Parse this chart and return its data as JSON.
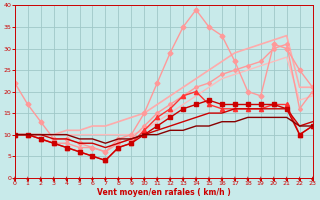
{
  "xlabel": "Vent moyen/en rafales ( km/h )",
  "xlim": [
    0,
    23
  ],
  "ylim": [
    0,
    40
  ],
  "yticks": [
    0,
    5,
    10,
    15,
    20,
    25,
    30,
    35,
    40
  ],
  "xticks": [
    0,
    1,
    2,
    3,
    4,
    5,
    6,
    7,
    8,
    9,
    10,
    11,
    12,
    13,
    14,
    15,
    16,
    17,
    18,
    19,
    20,
    21,
    22,
    23
  ],
  "bg_color": "#c8eaea",
  "grid_color": "#a0c8c8",
  "series": [
    {
      "x": [
        0,
        1,
        2,
        3,
        4,
        5,
        6,
        7,
        8,
        9,
        10,
        11,
        12,
        13,
        14,
        15,
        16,
        17,
        18,
        19,
        20,
        21,
        22,
        23
      ],
      "y": [
        10,
        10,
        10,
        10,
        11,
        11,
        12,
        12,
        13,
        14,
        15,
        17,
        19,
        21,
        23,
        25,
        27,
        29,
        30,
        31,
        32,
        33,
        21,
        21
      ],
      "color": "#ffaaaa",
      "marker": null,
      "lw": 1.2,
      "ms": 0
    },
    {
      "x": [
        0,
        1,
        2,
        3,
        4,
        5,
        6,
        7,
        8,
        9,
        10,
        11,
        12,
        13,
        14,
        15,
        16,
        17,
        18,
        19,
        20,
        21,
        22,
        23
      ],
      "y": [
        10,
        10,
        10,
        10,
        10,
        10,
        10,
        10,
        10,
        10,
        11,
        13,
        15,
        17,
        19,
        21,
        23,
        24,
        25,
        26,
        27,
        28,
        18,
        19
      ],
      "color": "#ffbbbb",
      "marker": null,
      "lw": 1.0,
      "ms": 0
    },
    {
      "x": [
        0,
        1,
        2,
        3,
        4,
        5,
        6,
        7,
        8,
        9,
        10,
        11,
        12,
        13,
        14,
        15,
        16,
        17,
        18,
        19,
        20,
        21,
        22,
        23
      ],
      "y": [
        22,
        17,
        13,
        9,
        9,
        8,
        7,
        6,
        9,
        10,
        15,
        22,
        29,
        35,
        39,
        35,
        33,
        27,
        20,
        19,
        31,
        30,
        25,
        21
      ],
      "color": "#ff9999",
      "marker": "D",
      "lw": 1.0,
      "ms": 2.5
    },
    {
      "x": [
        0,
        1,
        2,
        3,
        4,
        5,
        6,
        7,
        8,
        9,
        10,
        11,
        12,
        13,
        14,
        15,
        16,
        17,
        18,
        19,
        20,
        21,
        22,
        23
      ],
      "y": [
        10,
        10,
        9,
        8,
        8,
        7,
        7,
        6,
        8,
        9,
        12,
        15,
        17,
        19,
        21,
        22,
        24,
        25,
        26,
        27,
        30,
        31,
        16,
        20
      ],
      "color": "#ff9999",
      "marker": "D",
      "lw": 1.0,
      "ms": 2.0
    },
    {
      "x": [
        0,
        1,
        2,
        3,
        4,
        5,
        6,
        7,
        8,
        9,
        10,
        11,
        12,
        13,
        14,
        15,
        16,
        17,
        18,
        19,
        20,
        21,
        22,
        23
      ],
      "y": [
        10,
        10,
        9,
        8,
        7,
        6,
        5,
        4,
        7,
        8,
        11,
        14,
        16,
        19,
        20,
        17,
        16,
        16,
        16,
        16,
        17,
        17,
        10,
        12
      ],
      "color": "#ff3333",
      "marker": "^",
      "lw": 1.0,
      "ms": 3.0
    },
    {
      "x": [
        0,
        1,
        2,
        3,
        4,
        5,
        6,
        7,
        8,
        9,
        10,
        11,
        12,
        13,
        14,
        15,
        16,
        17,
        18,
        19,
        20,
        21,
        22,
        23
      ],
      "y": [
        10,
        10,
        9,
        8,
        7,
        6,
        5,
        4,
        7,
        8,
        10,
        12,
        14,
        16,
        17,
        18,
        17,
        17,
        17,
        17,
        17,
        16,
        10,
        12
      ],
      "color": "#cc0000",
      "marker": "s",
      "lw": 1.0,
      "ms": 2.5
    },
    {
      "x": [
        0,
        1,
        2,
        3,
        4,
        5,
        6,
        7,
        8,
        9,
        10,
        11,
        12,
        13,
        14,
        15,
        16,
        17,
        18,
        19,
        20,
        21,
        22,
        23
      ],
      "y": [
        10,
        10,
        10,
        9,
        9,
        8,
        8,
        7,
        8,
        9,
        10,
        11,
        12,
        13,
        14,
        15,
        15,
        16,
        16,
        16,
        16,
        16,
        12,
        13
      ],
      "color": "#cc0000",
      "marker": null,
      "lw": 1.0,
      "ms": 0
    },
    {
      "x": [
        0,
        1,
        2,
        3,
        4,
        5,
        6,
        7,
        8,
        9,
        10,
        11,
        12,
        13,
        14,
        15,
        16,
        17,
        18,
        19,
        20,
        21,
        22,
        23
      ],
      "y": [
        10,
        10,
        10,
        10,
        10,
        9,
        9,
        8,
        9,
        9,
        10,
        10,
        11,
        11,
        12,
        12,
        13,
        13,
        14,
        14,
        14,
        14,
        12,
        12
      ],
      "color": "#880000",
      "marker": null,
      "lw": 1.0,
      "ms": 0
    }
  ]
}
